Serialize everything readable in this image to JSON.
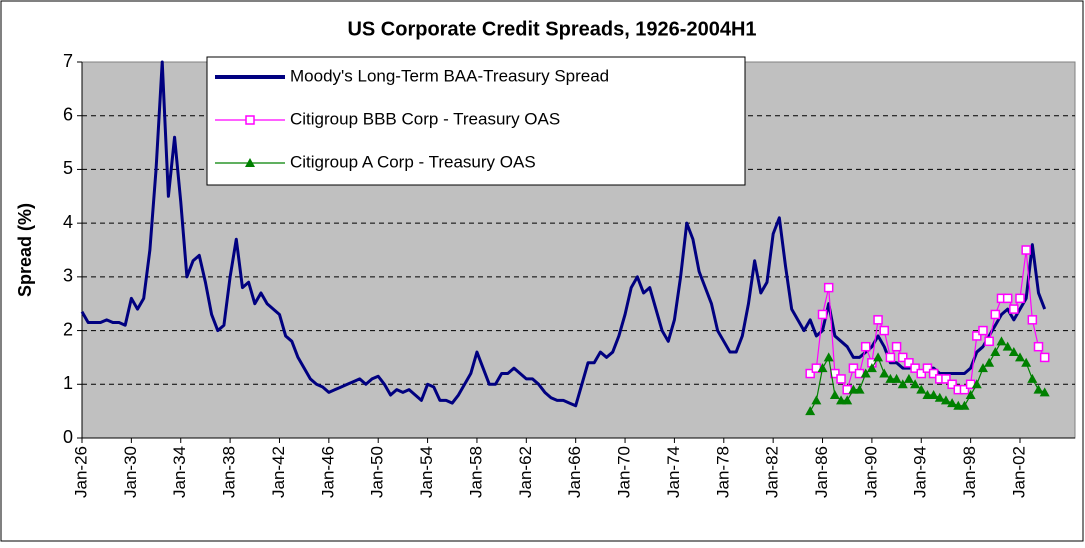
{
  "chart_data": {
    "type": "line",
    "title": "US Corporate Credit Spreads, 1926-2004H1",
    "y_label": "Spread (%)",
    "ylim": [
      0,
      7
    ],
    "yticks": [
      0,
      1,
      2,
      3,
      4,
      5,
      6,
      7
    ],
    "grid": true,
    "categories": [
      "Jan-26",
      null,
      null,
      null,
      null,
      null,
      null,
      null,
      "Jan-30",
      null,
      null,
      null,
      null,
      null,
      null,
      null,
      "Jan-34",
      null,
      null,
      null,
      null,
      null,
      null,
      null,
      "Jan-38",
      null,
      null,
      null,
      null,
      null,
      null,
      null,
      "Jan-42",
      null,
      null,
      null,
      null,
      null,
      null,
      null,
      "Jan-46",
      null,
      null,
      null,
      null,
      null,
      null,
      null,
      "Jan-50",
      null,
      null,
      null,
      null,
      null,
      null,
      null,
      "Jan-54",
      null,
      null,
      null,
      null,
      null,
      null,
      null,
      "Jan-58",
      null,
      null,
      null,
      null,
      null,
      null,
      null,
      "Jan-62",
      null,
      null,
      null,
      null,
      null,
      null,
      null,
      "Jan-66",
      null,
      null,
      null,
      null,
      null,
      null,
      null,
      "Jan-70",
      null,
      null,
      null,
      null,
      null,
      null,
      null,
      "Jan-74",
      null,
      null,
      null,
      null,
      null,
      null,
      null,
      "Jan-78",
      null,
      null,
      null,
      null,
      null,
      null,
      null,
      "Jan-82",
      null,
      null,
      null,
      null,
      null,
      null,
      null,
      "Jan-86",
      null,
      null,
      null,
      null,
      null,
      null,
      null,
      "Jan-90",
      null,
      null,
      null,
      null,
      null,
      null,
      null,
      "Jan-94",
      null,
      null,
      null,
      null,
      null,
      null,
      null,
      "Jan-98",
      null,
      null,
      null,
      null,
      null,
      null,
      null,
      "Jan-02",
      null,
      null,
      null,
      null
    ],
    "series": [
      {
        "name": "Moody's Long-Term BAA-Treasury Spread",
        "color": "#000080",
        "marker": "none",
        "values": [
          2.35,
          2.15,
          2.15,
          2.15,
          2.2,
          2.15,
          2.15,
          2.1,
          2.6,
          2.4,
          2.6,
          3.5,
          5.0,
          7.0,
          4.5,
          5.6,
          4.4,
          3.0,
          3.3,
          3.4,
          2.9,
          2.3,
          2.0,
          2.1,
          3.0,
          3.7,
          2.8,
          2.9,
          2.5,
          2.7,
          2.5,
          2.4,
          2.3,
          1.9,
          1.8,
          1.5,
          1.3,
          1.1,
          1.0,
          0.95,
          0.85,
          0.9,
          0.95,
          1.0,
          1.05,
          1.1,
          1.0,
          1.1,
          1.15,
          1.0,
          0.8,
          0.9,
          0.85,
          0.9,
          0.8,
          0.7,
          1.0,
          0.95,
          0.7,
          0.7,
          0.65,
          0.8,
          1.0,
          1.2,
          1.6,
          1.3,
          1.0,
          1.0,
          1.2,
          1.2,
          1.3,
          1.2,
          1.1,
          1.1,
          1.0,
          0.85,
          0.75,
          0.7,
          0.7,
          0.65,
          0.6,
          1.0,
          1.4,
          1.4,
          1.6,
          1.5,
          1.6,
          1.9,
          2.3,
          2.8,
          3.0,
          2.7,
          2.8,
          2.4,
          2.0,
          1.8,
          2.2,
          3.0,
          4.0,
          3.7,
          3.1,
          2.8,
          2.5,
          2.0,
          1.8,
          1.6,
          1.6,
          1.9,
          2.5,
          3.3,
          2.7,
          2.9,
          3.8,
          4.1,
          3.2,
          2.4,
          2.2,
          2.0,
          2.2,
          1.9,
          2.0,
          2.5,
          1.9,
          1.8,
          1.7,
          1.5,
          1.5,
          1.6,
          1.7,
          1.9,
          1.7,
          1.4,
          1.4,
          1.3,
          1.3,
          1.3,
          1.2,
          1.3,
          1.3,
          1.2,
          1.2,
          1.2,
          1.2,
          1.2,
          1.3,
          1.6,
          1.7,
          1.9,
          2.1,
          2.3,
          2.4,
          2.2,
          2.4,
          2.6,
          3.6,
          2.7,
          2.4
        ]
      },
      {
        "name": "Citigroup BBB Corp - Treasury OAS",
        "color": "#ff00ff",
        "marker": "square",
        "values": [
          null,
          null,
          null,
          null,
          null,
          null,
          null,
          null,
          null,
          null,
          null,
          null,
          null,
          null,
          null,
          null,
          null,
          null,
          null,
          null,
          null,
          null,
          null,
          null,
          null,
          null,
          null,
          null,
          null,
          null,
          null,
          null,
          null,
          null,
          null,
          null,
          null,
          null,
          null,
          null,
          null,
          null,
          null,
          null,
          null,
          null,
          null,
          null,
          null,
          null,
          null,
          null,
          null,
          null,
          null,
          null,
          null,
          null,
          null,
          null,
          null,
          null,
          null,
          null,
          null,
          null,
          null,
          null,
          null,
          null,
          null,
          null,
          null,
          null,
          null,
          null,
          null,
          null,
          null,
          null,
          null,
          null,
          null,
          null,
          null,
          null,
          null,
          null,
          null,
          null,
          null,
          null,
          null,
          null,
          null,
          null,
          null,
          null,
          null,
          null,
          null,
          null,
          null,
          null,
          null,
          null,
          null,
          null,
          null,
          null,
          null,
          null,
          null,
          null,
          null,
          null,
          null,
          null,
          1.2,
          1.3,
          2.3,
          2.8,
          1.2,
          1.1,
          0.9,
          1.3,
          1.2,
          1.7,
          1.4,
          2.2,
          2.0,
          1.5,
          1.7,
          1.5,
          1.4,
          1.3,
          1.2,
          1.3,
          1.2,
          1.1,
          1.1,
          1.0,
          0.9,
          0.9,
          1.0,
          1.9,
          2.0,
          1.8,
          2.3,
          2.6,
          2.6,
          2.4,
          2.6,
          3.5,
          2.2,
          1.7,
          1.5
        ]
      },
      {
        "name": "Citigroup A Corp - Treasury OAS",
        "color": "#008000",
        "marker": "triangle",
        "values": [
          null,
          null,
          null,
          null,
          null,
          null,
          null,
          null,
          null,
          null,
          null,
          null,
          null,
          null,
          null,
          null,
          null,
          null,
          null,
          null,
          null,
          null,
          null,
          null,
          null,
          null,
          null,
          null,
          null,
          null,
          null,
          null,
          null,
          null,
          null,
          null,
          null,
          null,
          null,
          null,
          null,
          null,
          null,
          null,
          null,
          null,
          null,
          null,
          null,
          null,
          null,
          null,
          null,
          null,
          null,
          null,
          null,
          null,
          null,
          null,
          null,
          null,
          null,
          null,
          null,
          null,
          null,
          null,
          null,
          null,
          null,
          null,
          null,
          null,
          null,
          null,
          null,
          null,
          null,
          null,
          null,
          null,
          null,
          null,
          null,
          null,
          null,
          null,
          null,
          null,
          null,
          null,
          null,
          null,
          null,
          null,
          null,
          null,
          null,
          null,
          null,
          null,
          null,
          null,
          null,
          null,
          null,
          null,
          null,
          null,
          null,
          null,
          null,
          null,
          null,
          null,
          null,
          null,
          0.5,
          0.7,
          1.3,
          1.5,
          0.8,
          0.7,
          0.7,
          0.9,
          0.9,
          1.2,
          1.3,
          1.5,
          1.2,
          1.1,
          1.1,
          1.0,
          1.1,
          1.0,
          0.9,
          0.8,
          0.8,
          0.75,
          0.7,
          0.65,
          0.6,
          0.6,
          0.8,
          1.0,
          1.3,
          1.4,
          1.6,
          1.8,
          1.7,
          1.6,
          1.5,
          1.4,
          1.1,
          0.9,
          0.85
        ]
      }
    ]
  }
}
